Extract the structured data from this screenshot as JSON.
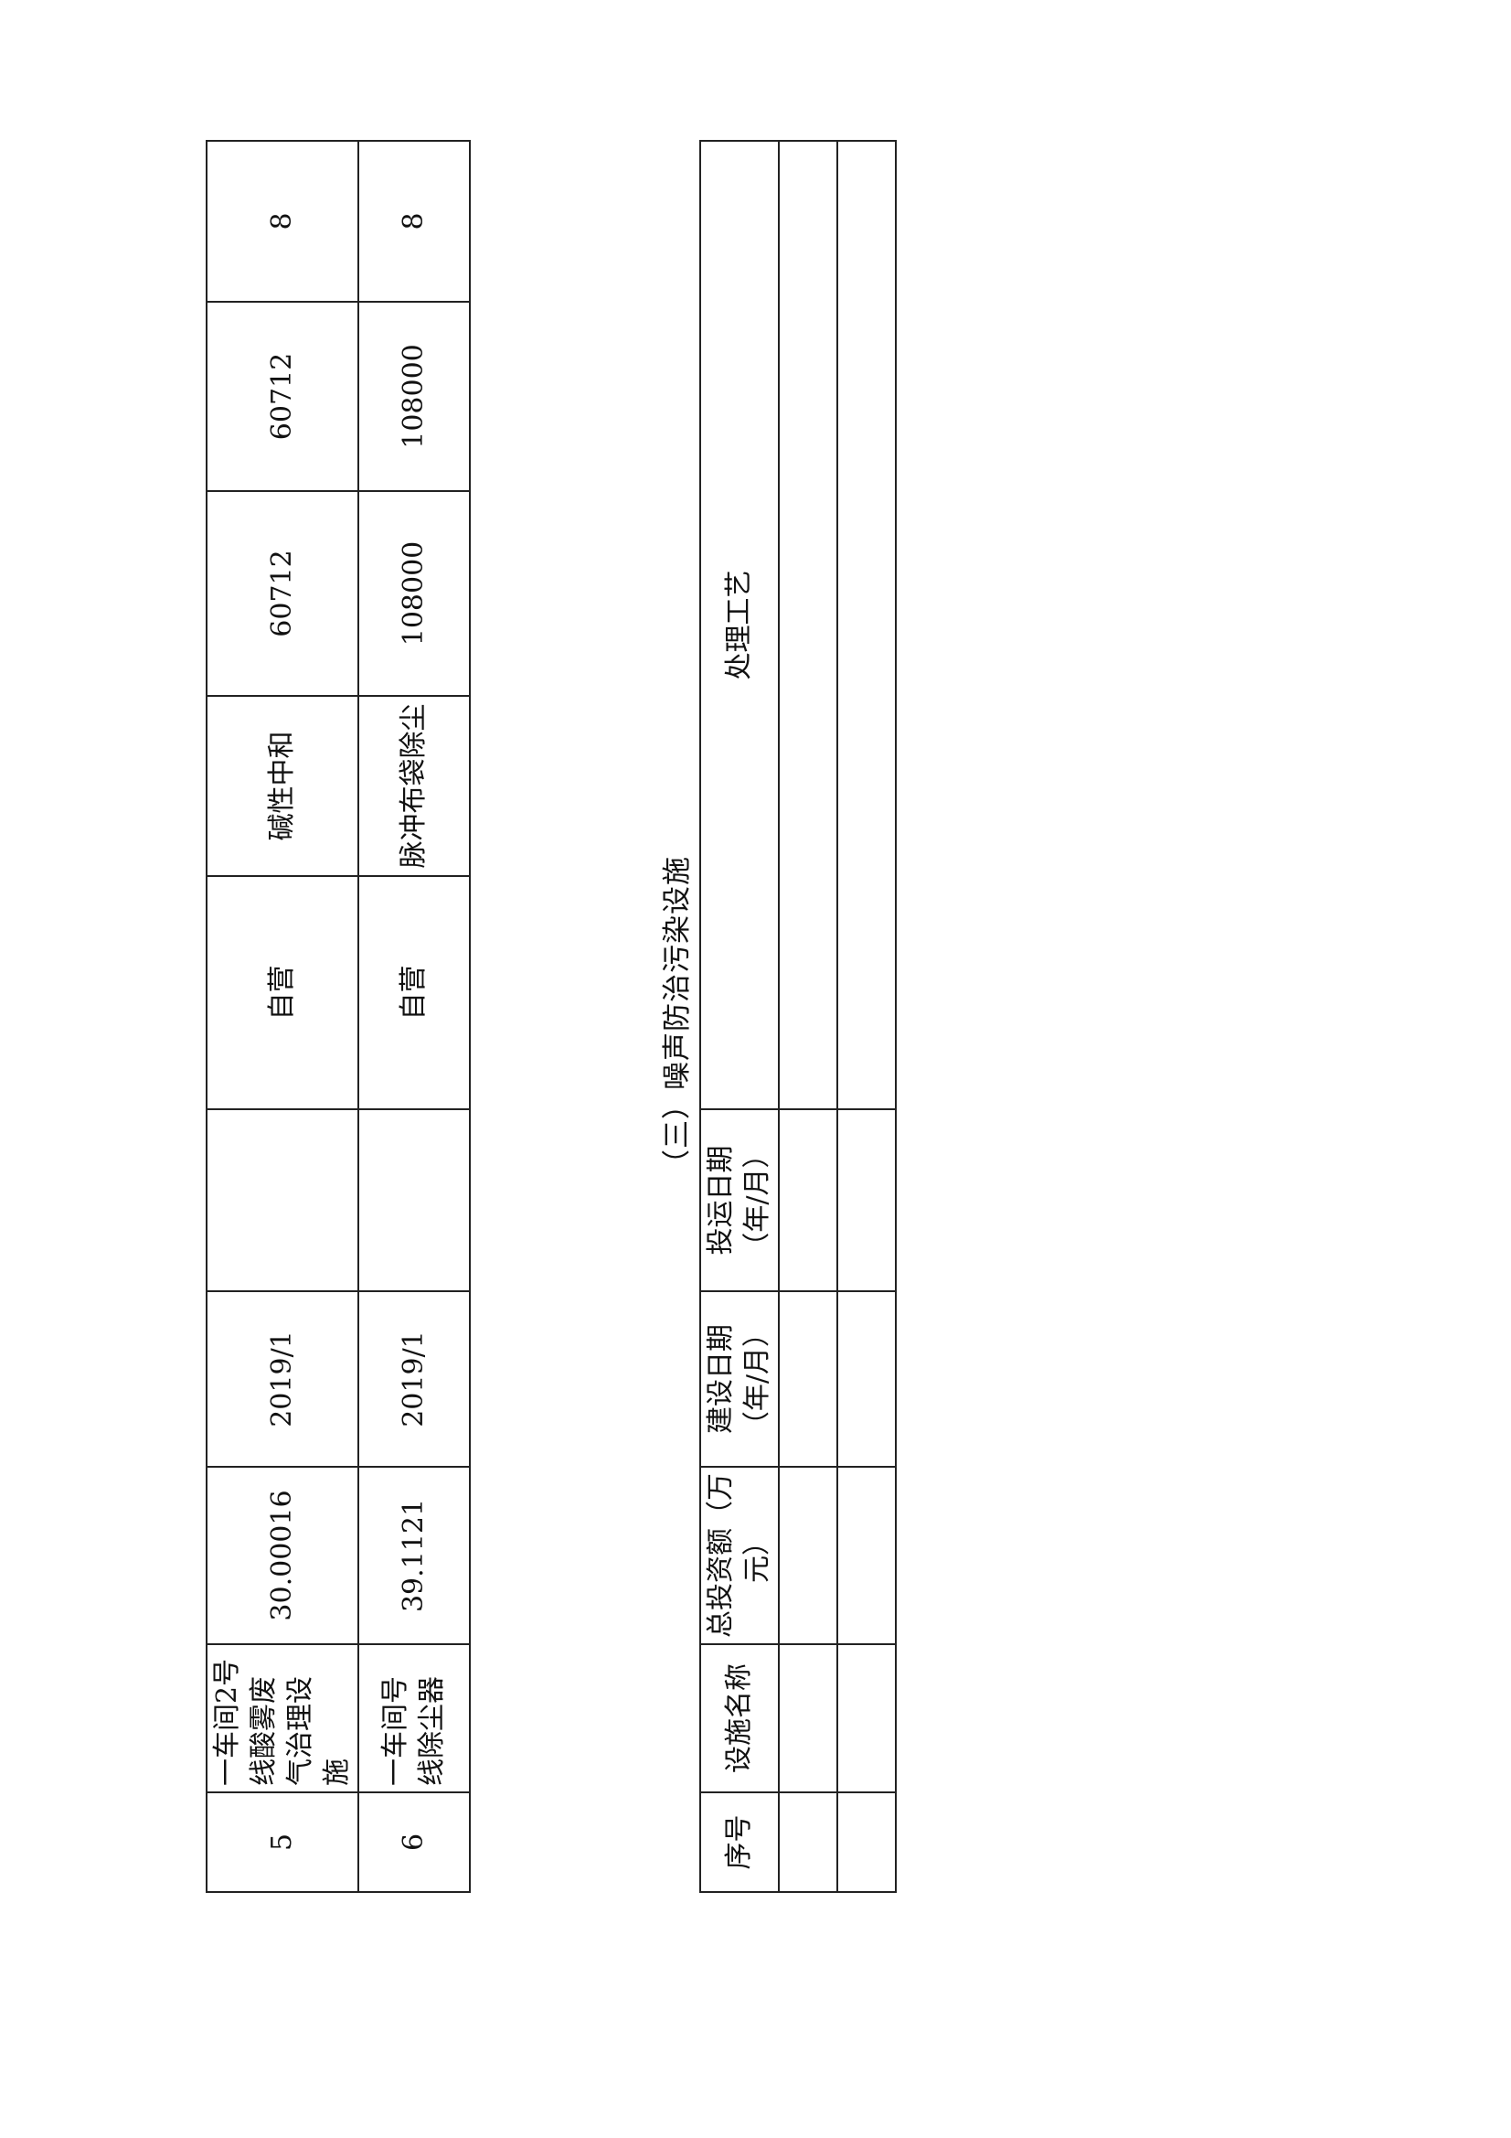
{
  "table_continued": {
    "rows": [
      {
        "no": "5",
        "name": "一车间2号线酸雾废气治理设施",
        "investment": "30.00016",
        "build_date": "2019/1",
        "operation_date": "",
        "operator": "自营",
        "process": "碱性中和",
        "design_capacity": "60712",
        "actual_capacity": "60712",
        "hours": "8"
      },
      {
        "no": "6",
        "name": "一车间号线除尘器",
        "investment": "39.1121",
        "build_date": "2019/1",
        "operation_date": "",
        "operator": "自营",
        "process": "脉冲布袋除尘",
        "design_capacity": "108000",
        "actual_capacity": "108000",
        "hours": "8"
      }
    ]
  },
  "noise_section": {
    "title": "（三）噪声防治污染设施",
    "headers": {
      "no": "序号",
      "name": "设施名称",
      "investment": "总投资额（万元）",
      "build_date": "建设日期（年/月）",
      "operation_date": "投运日期（年/月）",
      "process": "处理工艺"
    }
  }
}
